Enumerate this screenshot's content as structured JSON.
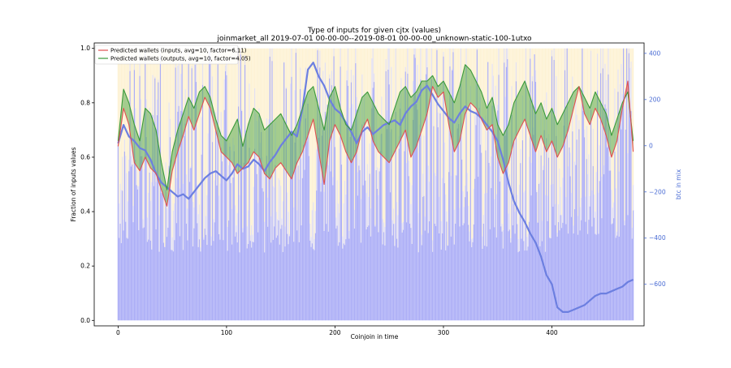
{
  "chart_data": {
    "type": "line",
    "title": "Type of inputs for given cjtx (values)",
    "subtitle": "joinmarket_all 2019-07-01 00-00-00--2019-08-01 00-00-00_unknown-static-100-1utxo",
    "xlabel": "Coinjoin in time",
    "ylabel": "Fraction of inputs values",
    "ylabel_right": "btc in mix",
    "xlim": [
      -22,
      485
    ],
    "ylim": [
      -0.02,
      1.02
    ],
    "ylim_right": [
      -780,
      445
    ],
    "x_ticks": [
      0,
      100,
      200,
      300,
      400
    ],
    "y_ticks": [
      0.0,
      0.2,
      0.4,
      0.6,
      0.8,
      1.0
    ],
    "y_tick_labels": [
      "0.0",
      "0.2",
      "0.4",
      "0.6",
      "0.8",
      "1.0"
    ],
    "y_right_ticks": [
      -600,
      -400,
      -200,
      0,
      200,
      400
    ],
    "y_right_tick_labels": [
      "−600",
      "−400",
      "−200",
      "0",
      "200",
      "400"
    ],
    "legend_position": "top-left",
    "series": [
      {
        "name": "Predicted wallets (inputs, avg=10, factor=6.11)",
        "color": "#e05050",
        "x": [
          0,
          5,
          10,
          15,
          20,
          25,
          30,
          35,
          40,
          45,
          50,
          55,
          60,
          65,
          70,
          75,
          80,
          85,
          90,
          95,
          100,
          105,
          110,
          115,
          120,
          125,
          130,
          135,
          140,
          145,
          150,
          155,
          160,
          165,
          170,
          175,
          180,
          185,
          190,
          195,
          200,
          205,
          210,
          215,
          220,
          225,
          230,
          235,
          240,
          245,
          250,
          255,
          260,
          265,
          270,
          275,
          280,
          285,
          290,
          295,
          300,
          305,
          310,
          315,
          320,
          325,
          330,
          335,
          340,
          345,
          350,
          355,
          360,
          365,
          370,
          375,
          380,
          385,
          390,
          395,
          400,
          405,
          410,
          415,
          420,
          425,
          430,
          435,
          440,
          445,
          450,
          455,
          460,
          465,
          470,
          475
        ],
        "y": [
          0.64,
          0.78,
          0.72,
          0.58,
          0.55,
          0.6,
          0.56,
          0.54,
          0.48,
          0.42,
          0.55,
          0.62,
          0.68,
          0.75,
          0.7,
          0.76,
          0.82,
          0.78,
          0.7,
          0.62,
          0.6,
          0.58,
          0.54,
          0.56,
          0.58,
          0.62,
          0.6,
          0.54,
          0.52,
          0.56,
          0.58,
          0.55,
          0.52,
          0.58,
          0.62,
          0.68,
          0.74,
          0.62,
          0.5,
          0.66,
          0.72,
          0.68,
          0.62,
          0.58,
          0.62,
          0.7,
          0.74,
          0.66,
          0.62,
          0.6,
          0.58,
          0.62,
          0.66,
          0.7,
          0.6,
          0.64,
          0.7,
          0.76,
          0.86,
          0.82,
          0.84,
          0.72,
          0.62,
          0.66,
          0.76,
          0.8,
          0.78,
          0.74,
          0.7,
          0.72,
          0.6,
          0.54,
          0.58,
          0.66,
          0.7,
          0.74,
          0.68,
          0.62,
          0.68,
          0.62,
          0.66,
          0.6,
          0.64,
          0.7,
          0.78,
          0.86,
          0.76,
          0.72,
          0.78,
          0.74,
          0.68,
          0.6,
          0.66,
          0.78,
          0.88,
          0.62
        ]
      },
      {
        "name": "Predicted wallets (outputs, avg=10, factor=4.05)",
        "color": "#3a9a3a",
        "x": [
          0,
          5,
          10,
          15,
          20,
          25,
          30,
          35,
          40,
          45,
          50,
          55,
          60,
          65,
          70,
          75,
          80,
          85,
          90,
          95,
          100,
          105,
          110,
          115,
          120,
          125,
          130,
          135,
          140,
          145,
          150,
          155,
          160,
          165,
          170,
          175,
          180,
          185,
          190,
          195,
          200,
          205,
          210,
          215,
          220,
          225,
          230,
          235,
          240,
          245,
          250,
          255,
          260,
          265,
          270,
          275,
          280,
          285,
          290,
          295,
          300,
          305,
          310,
          315,
          320,
          325,
          330,
          335,
          340,
          345,
          350,
          355,
          360,
          365,
          370,
          375,
          380,
          385,
          390,
          395,
          400,
          405,
          410,
          415,
          420,
          425,
          430,
          435,
          440,
          445,
          450,
          455,
          460,
          465,
          470,
          475
        ],
        "y": [
          0.66,
          0.85,
          0.8,
          0.72,
          0.66,
          0.78,
          0.76,
          0.7,
          0.58,
          0.48,
          0.62,
          0.7,
          0.76,
          0.82,
          0.78,
          0.84,
          0.86,
          0.82,
          0.74,
          0.68,
          0.66,
          0.7,
          0.74,
          0.64,
          0.72,
          0.78,
          0.76,
          0.7,
          0.72,
          0.74,
          0.76,
          0.72,
          0.68,
          0.72,
          0.78,
          0.84,
          0.86,
          0.78,
          0.7,
          0.82,
          0.86,
          0.78,
          0.72,
          0.7,
          0.76,
          0.82,
          0.84,
          0.8,
          0.76,
          0.74,
          0.72,
          0.78,
          0.84,
          0.86,
          0.82,
          0.84,
          0.88,
          0.88,
          0.9,
          0.86,
          0.88,
          0.84,
          0.8,
          0.86,
          0.94,
          0.92,
          0.88,
          0.84,
          0.78,
          0.82,
          0.72,
          0.68,
          0.72,
          0.8,
          0.84,
          0.88,
          0.82,
          0.76,
          0.8,
          0.74,
          0.78,
          0.72,
          0.76,
          0.8,
          0.84,
          0.86,
          0.82,
          0.78,
          0.84,
          0.8,
          0.76,
          0.68,
          0.74,
          0.8,
          0.84,
          0.66
        ]
      },
      {
        "name": "",
        "axis": "right",
        "color": "#6c7fe0",
        "x": [
          0,
          5,
          10,
          15,
          20,
          25,
          30,
          35,
          40,
          45,
          50,
          55,
          60,
          65,
          70,
          75,
          80,
          85,
          90,
          95,
          100,
          105,
          110,
          115,
          120,
          125,
          130,
          135,
          140,
          145,
          150,
          155,
          160,
          165,
          170,
          175,
          180,
          185,
          190,
          195,
          200,
          205,
          210,
          215,
          220,
          225,
          230,
          235,
          240,
          245,
          250,
          255,
          260,
          265,
          270,
          275,
          280,
          285,
          290,
          295,
          300,
          305,
          310,
          315,
          320,
          325,
          330,
          335,
          340,
          345,
          350,
          355,
          360,
          365,
          370,
          375,
          380,
          385,
          390,
          395,
          400,
          405,
          410,
          415,
          420,
          425,
          430,
          435,
          440,
          445,
          450,
          455,
          460,
          465,
          470,
          475
        ],
        "y": [
          10,
          90,
          40,
          20,
          -10,
          -20,
          -60,
          -120,
          -160,
          -180,
          -200,
          -220,
          -210,
          -230,
          -200,
          -170,
          -140,
          -120,
          -110,
          -130,
          -150,
          -120,
          -80,
          -100,
          -90,
          -60,
          -80,
          -110,
          -70,
          -40,
          0,
          30,
          60,
          40,
          160,
          330,
          360,
          300,
          260,
          200,
          160,
          140,
          100,
          60,
          10,
          60,
          80,
          50,
          70,
          90,
          100,
          110,
          90,
          140,
          170,
          190,
          240,
          260,
          220,
          180,
          150,
          120,
          100,
          140,
          170,
          150,
          140,
          120,
          90,
          60,
          20,
          -60,
          -160,
          -240,
          -290,
          -330,
          -380,
          -420,
          -480,
          -560,
          -600,
          -700,
          -720,
          -720,
          -710,
          -700,
          -690,
          -670,
          -650,
          -640,
          -640,
          -630,
          -620,
          -610,
          -590,
          -580
        ]
      }
    ],
    "stacked_background": {
      "description_layers": [
        "blue",
        "lavender",
        "yellow"
      ],
      "colors": [
        "#9ea0f5",
        "#dcd8ee",
        "#fbe7b0"
      ]
    }
  }
}
